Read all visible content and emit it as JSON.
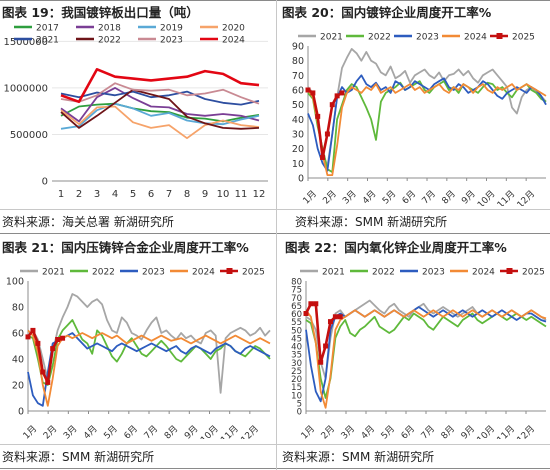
{
  "charts": [
    {
      "header": "图表 19：我国镀锌板出口量（吨）",
      "source": "资料来源：海关总署  新湖研究所",
      "chart_data": {
        "type": "line",
        "xaxis": "category",
        "categories": [
          "1",
          "2",
          "3",
          "4",
          "5",
          "6",
          "7",
          "8",
          "9",
          "10",
          "11",
          "12"
        ],
        "yticks": [
          0,
          500000,
          1000000,
          1500000
        ],
        "ytick_labels": [
          "0",
          "500000",
          "1000000",
          "1500000"
        ],
        "ylim": [
          0,
          1600000
        ],
        "legend": "top",
        "series": [
          {
            "name": "2017",
            "color": "#2e9e3e",
            "values": [
              700000,
              800000,
              820000,
              830000,
              780000,
              750000,
              740000,
              680000,
              670000,
              640000,
              680000,
              710000
            ]
          },
          {
            "name": "2018",
            "color": "#7a3e95",
            "values": [
              780000,
              640000,
              900000,
              1000000,
              890000,
              800000,
              790000,
              720000,
              700000,
              720000,
              700000,
              650000
            ]
          },
          {
            "name": "2019",
            "color": "#5aa9d6",
            "values": [
              560000,
              590000,
              760000,
              830000,
              780000,
              700000,
              730000,
              650000,
              620000,
              610000,
              660000,
              700000
            ]
          },
          {
            "name": "2020",
            "color": "#f6a36a",
            "values": [
              760000,
              610000,
              790000,
              800000,
              630000,
              570000,
              600000,
              460000,
              600000,
              650000,
              600000,
              580000
            ]
          },
          {
            "name": "2021",
            "color": "#2d4ea0",
            "values": [
              940000,
              900000,
              950000,
              920000,
              960000,
              900000,
              920000,
              960000,
              880000,
              840000,
              820000,
              860000
            ]
          },
          {
            "name": "2022",
            "color": "#6e1418",
            "values": [
              740000,
              570000,
              700000,
              840000,
              980000,
              930000,
              880000,
              690000,
              620000,
              570000,
              560000,
              570000
            ]
          },
          {
            "name": "2023",
            "color": "#c98a93",
            "values": [
              880000,
              850000,
              920000,
              1050000,
              980000,
              970000,
              980000,
              920000,
              940000,
              980000,
              900000,
              830000
            ]
          },
          {
            "name": "2024",
            "color": "#e30613",
            "values": [
              920000,
              850000,
              1200000,
              1120000,
              1100000,
              1080000,
              1100000,
              1120000,
              1180000,
              1150000,
              1050000,
              1030000
            ]
          }
        ]
      }
    },
    {
      "header": "图表 20：国内镀锌企业周度开工率%",
      "source": "资料来源：SMM  新湖研究所",
      "chart_data": {
        "type": "line",
        "xaxis": "weekly",
        "month_labels": [
          "1月",
          "2月",
          "3月",
          "4月",
          "5月",
          "6月",
          "7月",
          "8月",
          "9月",
          "10月",
          "11月",
          "12月"
        ],
        "yticks": [
          0,
          10,
          20,
          30,
          40,
          50,
          60,
          70,
          80,
          90
        ],
        "ytick_labels": [
          "0",
          "10",
          "20",
          "30",
          "40",
          "50",
          "60",
          "70",
          "80",
          "90"
        ],
        "ylim": [
          0,
          90
        ],
        "legend": "top",
        "series": [
          {
            "name": "2021",
            "color": "#a6a6a6",
            "values": [
              62,
              58,
              40,
              18,
              8,
              30,
              55,
              75,
              82,
              88,
              85,
              80,
              86,
              80,
              78,
              72,
              70,
              76,
              68,
              70,
              73,
              65,
              70,
              72,
              74,
              70,
              68,
              72,
              66,
              70,
              71,
              74,
              70,
              73,
              68,
              65,
              70,
              72,
              74,
              70,
              66,
              62,
              48,
              44,
              55,
              60,
              62,
              58,
              56,
              52
            ]
          },
          {
            "name": "2022",
            "color": "#5fb93b",
            "values": [
              58,
              54,
              35,
              20,
              6,
              4,
              40,
              50,
              60,
              64,
              62,
              55,
              48,
              40,
              26,
              52,
              58,
              60,
              62,
              65,
              60,
              62,
              64,
              66,
              60,
              58,
              62,
              64,
              66,
              60,
              62,
              58,
              64,
              62,
              60,
              58,
              62,
              65,
              64,
              60,
              62,
              58,
              55,
              60,
              62,
              64,
              60,
              58,
              54,
              52
            ]
          },
          {
            "name": "2023",
            "color": "#2d5cbf",
            "values": [
              44,
              36,
              20,
              10,
              5,
              30,
              55,
              62,
              58,
              60,
              66,
              70,
              64,
              62,
              65,
              60,
              62,
              58,
              66,
              64,
              60,
              62,
              66,
              64,
              62,
              60,
              64,
              66,
              68,
              62,
              60,
              64,
              62,
              58,
              60,
              62,
              66,
              64,
              60,
              56,
              54,
              58,
              60,
              62,
              60,
              58,
              62,
              60,
              56,
              50
            ]
          },
          {
            "name": "2024",
            "color": "#f28a35",
            "values": [
              60,
              55,
              38,
              16,
              2,
              2,
              22,
              48,
              58,
              62,
              60,
              58,
              62,
              60,
              64,
              58,
              60,
              62,
              58,
              60,
              62,
              64,
              60,
              62,
              58,
              60,
              62,
              64,
              60,
              58,
              62,
              60,
              64,
              62,
              58,
              62,
              64,
              60,
              58,
              62,
              60,
              62,
              64,
              60,
              62,
              64,
              62,
              60,
              58,
              56
            ]
          },
          {
            "name": "2025",
            "color": "#c40f0f",
            "marker": true,
            "values": [
              60,
              58,
              42,
              14,
              30,
              50,
              56,
              58
            ]
          }
        ]
      }
    },
    {
      "header": "图表 21：国内压铸锌合金企业周度开工率%",
      "source": "资料来源：SMM  新湖研究所",
      "chart_data": {
        "type": "line",
        "xaxis": "weekly",
        "month_labels": [
          "1月",
          "2月",
          "3月",
          "4月",
          "5月",
          "6月",
          "7月",
          "8月",
          "9月",
          "10月",
          "11月",
          "12月"
        ],
        "yticks": [
          0,
          20,
          40,
          60,
          80,
          100
        ],
        "ytick_labels": [
          "0",
          "20",
          "40",
          "60",
          "80",
          "100"
        ],
        "ylim": [
          0,
          100
        ],
        "legend": "top",
        "series": [
          {
            "name": "2021",
            "color": "#a6a6a6",
            "values": [
              58,
              62,
              55,
              40,
              24,
              45,
              62,
              72,
              80,
              90,
              88,
              84,
              80,
              84,
              86,
              82,
              70,
              62,
              60,
              72,
              68,
              60,
              58,
              55,
              62,
              68,
              72,
              60,
              62,
              58,
              55,
              60,
              56,
              58,
              54,
              52,
              60,
              62,
              58,
              14,
              56,
              60,
              62,
              64,
              62,
              58,
              60,
              64,
              58,
              62
            ]
          },
          {
            "name": "2022",
            "color": "#5fb93b",
            "values": [
              58,
              56,
              40,
              22,
              20,
              35,
              55,
              62,
              66,
              70,
              62,
              55,
              52,
              44,
              62,
              58,
              50,
              42,
              38,
              44,
              52,
              56,
              50,
              44,
              42,
              46,
              50,
              54,
              50,
              45,
              40,
              38,
              42,
              46,
              50,
              48,
              44,
              40,
              46,
              48,
              52,
              50,
              46,
              44,
              42,
              46,
              50,
              48,
              44,
              40
            ]
          },
          {
            "name": "2023",
            "color": "#2d5cbf",
            "values": [
              30,
              12,
              6,
              4,
              30,
              52,
              54,
              56,
              58,
              60,
              56,
              52,
              48,
              50,
              52,
              50,
              48,
              46,
              50,
              52,
              50,
              48,
              46,
              48,
              50,
              52,
              50,
              48,
              46,
              48,
              50,
              46,
              44,
              48,
              50,
              48,
              46,
              44,
              48,
              50,
              52,
              50,
              46,
              44,
              48,
              50,
              48,
              46,
              44,
              42
            ]
          },
          {
            "name": "2024",
            "color": "#f28a35",
            "values": [
              62,
              58,
              45,
              20,
              4,
              25,
              50,
              56,
              58,
              56,
              58,
              60,
              58,
              56,
              58,
              60,
              58,
              56,
              58,
              55,
              52,
              54,
              56,
              58,
              56,
              54,
              56,
              58,
              56,
              54,
              55,
              56,
              54,
              52,
              54,
              56,
              58,
              56,
              54,
              52,
              54,
              56,
              58,
              56,
              54,
              52,
              54,
              56,
              54,
              52
            ]
          },
          {
            "name": "2025",
            "color": "#c40f0f",
            "marker": true,
            "values": [
              57,
              62,
              52,
              30,
              22,
              48,
              55,
              56
            ]
          }
        ]
      }
    },
    {
      "header": "图表 22：国内氧化锌企业周度开工率%",
      "source": "资料来源：SMM  新湖研究所",
      "chart_data": {
        "type": "line",
        "xaxis": "weekly",
        "month_labels": [
          "1月",
          "2月",
          "3月",
          "4月",
          "5月",
          "6月",
          "7月",
          "8月",
          "9月",
          "10月",
          "11月",
          "12月"
        ],
        "yticks": [
          0,
          5,
          10,
          15,
          20,
          25,
          30,
          35,
          40,
          45,
          50,
          55,
          60,
          65,
          70,
          75,
          80
        ],
        "ytick_labels": [
          "0",
          "5",
          "10",
          "15",
          "20",
          "25",
          "30",
          "35",
          "40",
          "45",
          "50",
          "55",
          "60",
          "65",
          "70",
          "75",
          "80"
        ],
        "ylim": [
          0,
          80
        ],
        "legend": "top",
        "series": [
          {
            "name": "2021",
            "color": "#a6a6a6",
            "values": [
              58,
              56,
              50,
              30,
              20,
              45,
              60,
              62,
              58,
              60,
              62,
              64,
              66,
              68,
              65,
              62,
              60,
              64,
              66,
              62,
              60,
              58,
              62,
              64,
              66,
              62,
              60,
              62,
              64,
              62,
              60,
              58,
              60,
              62,
              64,
              60,
              58,
              60,
              62,
              60,
              58,
              60,
              62,
              60,
              58,
              60,
              62,
              60,
              58,
              56
            ]
          },
          {
            "name": "2022",
            "color": "#5fb93b",
            "values": [
              56,
              54,
              42,
              20,
              8,
              20,
              45,
              52,
              56,
              48,
              46,
              50,
              52,
              55,
              58,
              52,
              50,
              48,
              50,
              54,
              58,
              56,
              60,
              58,
              56,
              52,
              50,
              54,
              58,
              56,
              54,
              52,
              56,
              58,
              60,
              56,
              54,
              56,
              58,
              60,
              58,
              56,
              58,
              60,
              58,
              56,
              58,
              56,
              54,
              52
            ]
          },
          {
            "name": "2023",
            "color": "#2d5cbf",
            "values": [
              50,
              28,
              12,
              6,
              20,
              50,
              58,
              60,
              58,
              60,
              62,
              60,
              58,
              60,
              62,
              60,
              58,
              60,
              62,
              60,
              58,
              60,
              62,
              64,
              62,
              60,
              58,
              60,
              62,
              60,
              58,
              60,
              62,
              60,
              58,
              60,
              62,
              60,
              58,
              60,
              62,
              60,
              58,
              56,
              58,
              60,
              60,
              58,
              56,
              55
            ]
          },
          {
            "name": "2024",
            "color": "#f28a35",
            "values": [
              62,
              58,
              42,
              12,
              2,
              22,
              50,
              56,
              58,
              60,
              62,
              60,
              58,
              60,
              62,
              60,
              58,
              60,
              62,
              60,
              58,
              60,
              62,
              60,
              58,
              60,
              62,
              60,
              58,
              60,
              62,
              60,
              58,
              60,
              62,
              60,
              58,
              60,
              62,
              60,
              58,
              60,
              62,
              60,
              58,
              60,
              62,
              60,
              58,
              57
            ]
          },
          {
            "name": "2025",
            "color": "#c40f0f",
            "marker": true,
            "values": [
              60,
              66,
              66,
              30,
              40,
              55,
              58,
              58
            ]
          }
        ]
      }
    }
  ]
}
